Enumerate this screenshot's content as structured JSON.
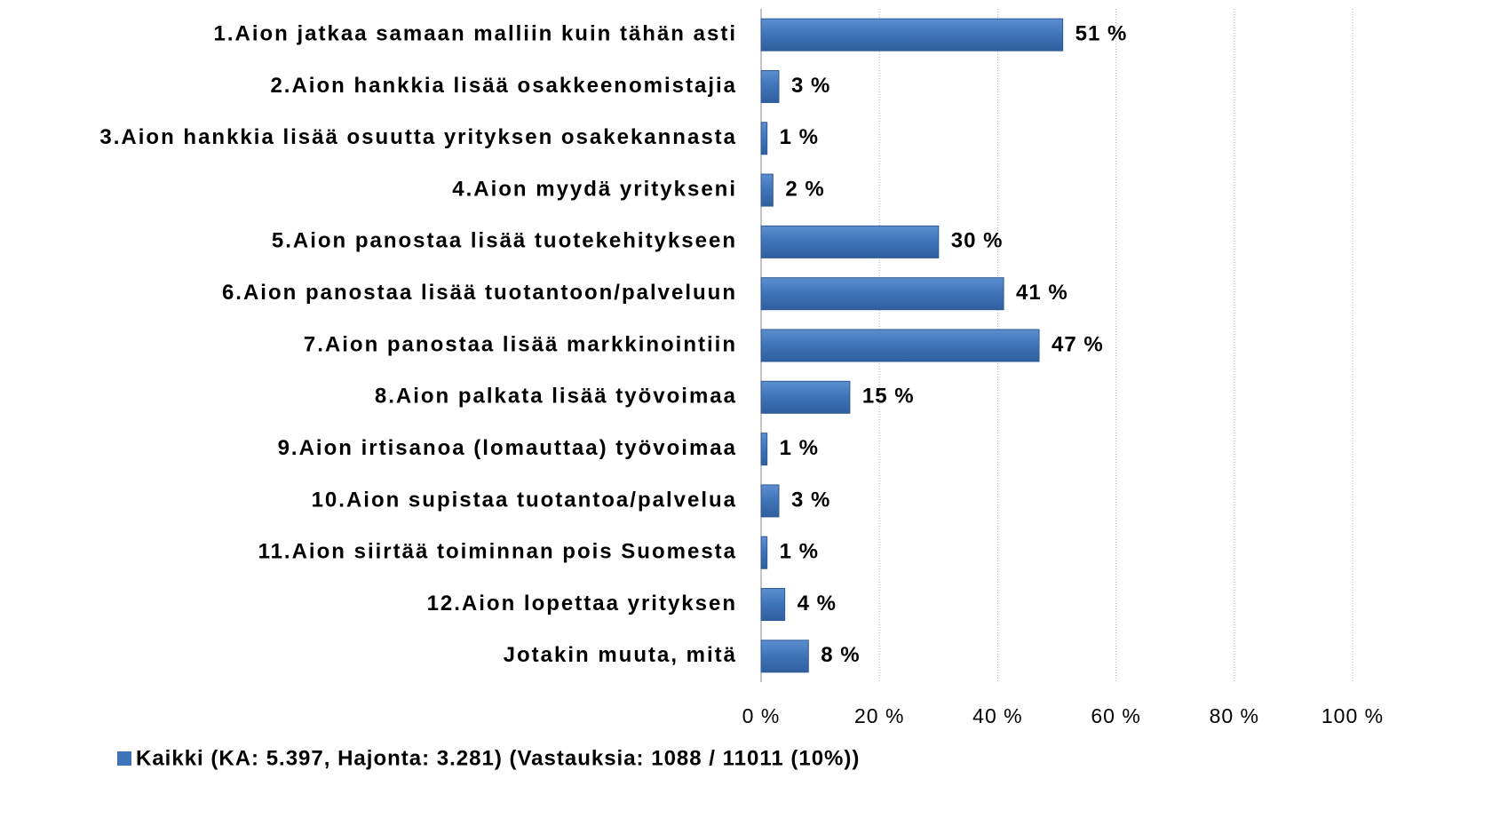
{
  "chart_data": {
    "type": "bar",
    "orientation": "horizontal",
    "categories": [
      "1.Aion jatkaa samaan malliin kuin tähän asti",
      "2.Aion hankkia lisää osakkeenomistajia",
      "3.Aion hankkia lisää osuutta yrityksen osakekannasta",
      "4.Aion myydä yritykseni",
      "5.Aion panostaa lisää tuotekehitykseen",
      "6.Aion panostaa lisää tuotantoon/palveluun",
      "7.Aion panostaa lisää markkinointiin",
      "8.Aion palkata lisää työvoimaa",
      "9.Aion irtisanoa (lomauttaa) työvoimaa",
      "10.Aion supistaa tuotantoa/palvelua",
      "11.Aion siirtää toiminnan pois Suomesta",
      "12.Aion lopettaa yrityksen",
      "Jotakin muuta, mitä"
    ],
    "series": [
      {
        "name": "Kaikki (KA: 5.397, Hajonta: 3.281) (Vastauksia: 1088 / 11011 (10%))",
        "color": "#3f73b8",
        "values": [
          51,
          3,
          1,
          2,
          30,
          41,
          47,
          15,
          1,
          3,
          1,
          4,
          8
        ],
        "value_labels": [
          "51 %",
          "3 %",
          "1 %",
          "2 %",
          "30 %",
          "41 %",
          "47 %",
          "15 %",
          "1 %",
          "3 %",
          "1 %",
          "4 %",
          "8 %"
        ]
      }
    ],
    "xlim": [
      0,
      100
    ],
    "xticks": [
      {
        "value": 0,
        "label": "0 %"
      },
      {
        "value": 20,
        "label": "20 %"
      },
      {
        "value": 40,
        "label": "40 %"
      },
      {
        "value": 60,
        "label": "60 %"
      },
      {
        "value": 80,
        "label": "80 %"
      },
      {
        "value": 100,
        "label": "100 %"
      }
    ],
    "grid": true,
    "legend": "bottom"
  }
}
